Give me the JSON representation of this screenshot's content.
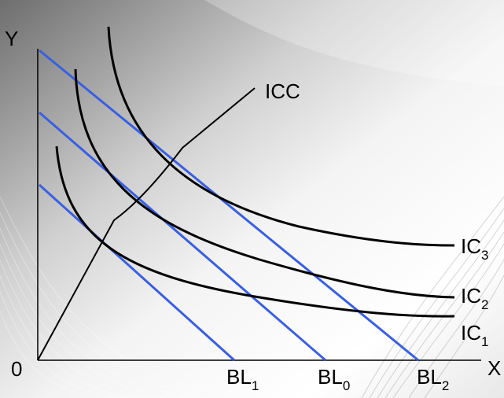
{
  "axes": {
    "y_label": "Y",
    "x_label": "X",
    "origin_label": "0"
  },
  "icc": {
    "label": "ICC"
  },
  "indifference_curves": [
    {
      "base": "IC",
      "sub": "1"
    },
    {
      "base": "IC",
      "sub": "2"
    },
    {
      "base": "IC",
      "sub": "3"
    }
  ],
  "budget_lines": [
    {
      "base": "BL",
      "sub": "1"
    },
    {
      "base": "BL",
      "sub": "0"
    },
    {
      "base": "BL",
      "sub": "2"
    }
  ],
  "colors": {
    "budget_line": "#3a5fe0",
    "curve": "#000000"
  }
}
